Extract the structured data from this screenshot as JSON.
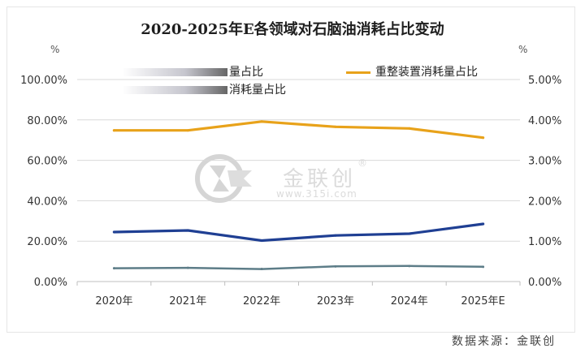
{
  "title": "2020-2025年E各领域对石脑油消耗占比变动",
  "unit_left": "%",
  "unit_right": "%",
  "source": "数据来源：金联创",
  "watermark": {
    "text": "金联创",
    "url": "www.315i.com",
    "mark": "®"
  },
  "legend": [
    {
      "label": "量占比",
      "color": "#1f3f93"
    },
    {
      "label": "消耗量占比",
      "color": "#5d7d88"
    },
    {
      "label": "重整装置消耗量占比",
      "color": "#e8a21a"
    }
  ],
  "chart_data": {
    "type": "line",
    "categories": [
      "2020年",
      "2021年",
      "2022年",
      "2023年",
      "2024年",
      "2025年E"
    ],
    "y_left": {
      "ylim": [
        0,
        100
      ],
      "ticks": [
        "0.00%",
        "20.00%",
        "40.00%",
        "60.00%",
        "80.00%",
        "100.00%"
      ]
    },
    "y_right": {
      "ylim": [
        0,
        5
      ],
      "ticks": [
        "0.00%",
        "1.00%",
        "2.00%",
        "3.00%",
        "4.00%",
        "5.00%"
      ]
    },
    "series": [
      {
        "name": "量占比",
        "axis": "left",
        "color": "#1f3f93",
        "values": [
          24.5,
          25.3,
          20.3,
          22.8,
          23.7,
          28.5
        ]
      },
      {
        "name": "消耗量占比",
        "axis": "left",
        "color": "#5d7d88",
        "values": [
          6.6,
          6.8,
          6.2,
          7.5,
          7.7,
          7.3
        ]
      },
      {
        "name": "重整装置消耗量占比",
        "axis": "right",
        "color": "#e8a21a",
        "values": [
          3.74,
          3.74,
          3.96,
          3.83,
          3.79,
          3.56
        ]
      }
    ],
    "grid": true
  }
}
